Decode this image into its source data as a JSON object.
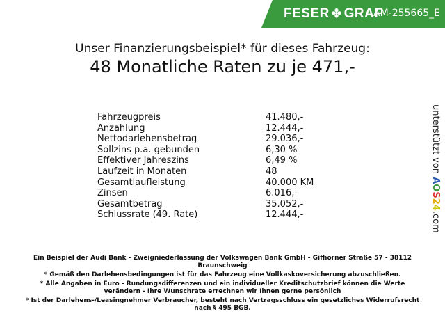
{
  "header": {
    "brand": "FESER",
    "brand2": "GRAF",
    "code": "AM-255665_E",
    "accent": "#3a9a3e"
  },
  "title": "Unser Finanzierungsbeispiel* für dieses Fahrzeug:",
  "subtitle": "48 Monatliche Raten zu je 471,-",
  "rows": [
    {
      "label": "Fahrzeugpreis",
      "value": "41.480,-"
    },
    {
      "label": "Anzahlung",
      "value": "12.444,-"
    },
    {
      "label": "Nettodarlehensbetrag",
      "value": "29.036,-"
    },
    {
      "label": "Sollzins p.a. gebunden",
      "value": "6,30 %"
    },
    {
      "label": "Effektiver Jahreszins",
      "value": "6,49 %"
    },
    {
      "label": "Laufzeit in Monaten",
      "value": "48"
    },
    {
      "label": "Gesamtlaufleistung",
      "value": "40.000 KM"
    },
    {
      "label": "Zinsen",
      "value": "6.016,-"
    },
    {
      "label": "Gesamtbetrag",
      "value": "35.052,-"
    },
    {
      "label": "Schlussrate (49. Rate)",
      "value": "12.444,-"
    }
  ],
  "side": {
    "prefix": "unterstützt von",
    "logo": "AOS24",
    "suffix": ".com"
  },
  "footer": [
    "Ein Beispiel der Audi Bank - Zweigniederlassung der Volkswagen Bank GmbH - Gifhorner Straße 57 - 38112 Braunschweig",
    "* Gemäß den Darlehensbedingungen ist für das Fahrzeug eine Vollkaskoversicherung abzuschließen.",
    "* Alle Angaben in Euro - Rundungsdifferenzen und ein individueller Kreditschutzbrief können die Werte verändern - Ihre Wunschrate errechnen wir Ihnen gerne persönlich",
    "* Ist der Darlehens-/Leasingnehmer Verbraucher, besteht nach Vertragsschluss ein gesetzliches Widerrufsrecht nach § 495 BGB."
  ]
}
